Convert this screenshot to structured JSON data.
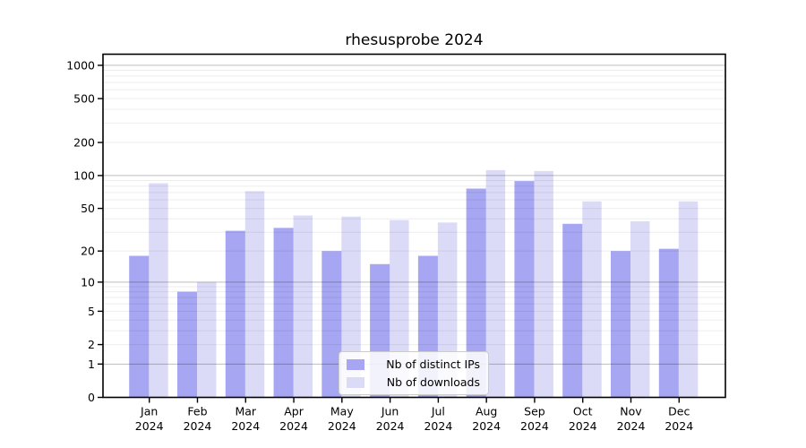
{
  "chart_data": {
    "type": "bar",
    "title": "rhesusprobe 2024",
    "categories": [
      "Jan 2024",
      "Feb 2024",
      "Mar 2024",
      "Apr 2024",
      "May 2024",
      "Jun 2024",
      "Jul 2024",
      "Aug 2024",
      "Sep 2024",
      "Oct 2024",
      "Nov 2024",
      "Dec 2024"
    ],
    "series": [
      {
        "name": "Nb of distinct IPs",
        "color": "#a6a6f2",
        "values": [
          18,
          8,
          31,
          33,
          20,
          15,
          18,
          76,
          89,
          36,
          20,
          21
        ]
      },
      {
        "name": "Nb of downloads",
        "color": "#dbdbf8",
        "values": [
          85,
          10,
          72,
          43,
          42,
          39,
          37,
          112,
          110,
          58,
          38,
          58
        ]
      }
    ],
    "yscale": "log1p",
    "yticks": [
      0,
      1,
      2,
      5,
      10,
      20,
      50,
      100,
      200,
      500,
      1000
    ],
    "ylim": [
      0,
      1260
    ],
    "grid": {
      "major_on": true,
      "minor_on": true
    },
    "legend_position": "bottom-center",
    "colors": {
      "major_grid": "rgba(0,0,0,0.26)",
      "minor_grid": "rgba(0,0,0,0.07)",
      "axis": "#000000",
      "text": "#000000"
    }
  }
}
